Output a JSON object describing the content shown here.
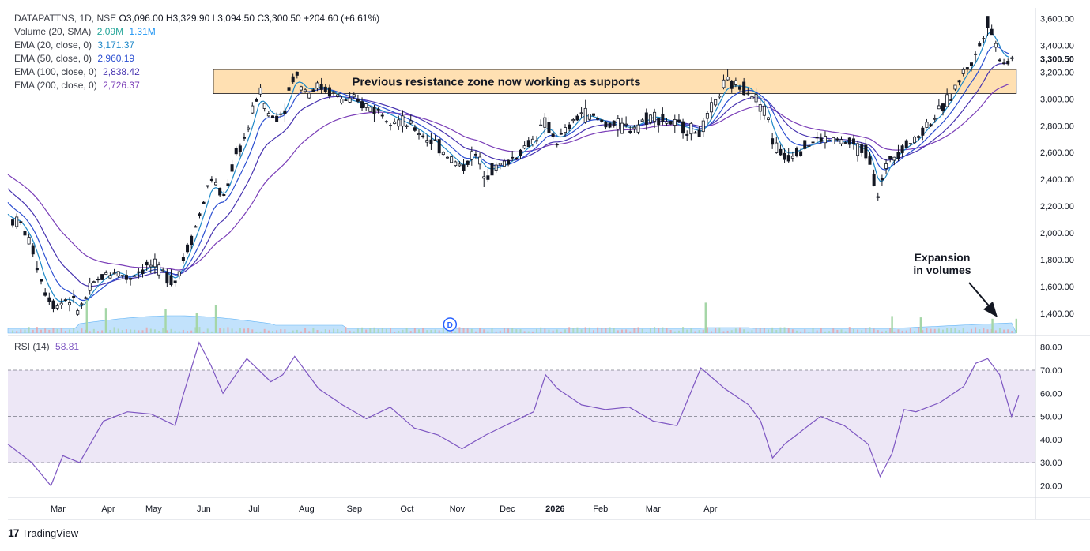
{
  "header": {
    "symbol": "DATAPATTNS, 1D, NSE",
    "open": "O3,096.00",
    "high": "H3,329.90",
    "low": "L3,094.50",
    "close": "C3,300.50",
    "change": "+204.60 (+6.61%)"
  },
  "indicators": [
    {
      "label": "Volume (20, SMA)",
      "value": "2.09M",
      "value2": "1.31M",
      "color": "#26a69a"
    },
    {
      "label": "EMA (20, close, 0)",
      "value": "3,171.37",
      "color": "#2962ff"
    },
    {
      "label": "EMA (50, close, 0)",
      "value": "2,960.19",
      "color": "#2f4bd6"
    },
    {
      "label": "EMA (100, close, 0)",
      "value": "2,838.42",
      "color": "#4c3bb5"
    },
    {
      "label": "EMA (200, close, 0)",
      "value": "2,726.37",
      "color": "#7b3fb8"
    }
  ],
  "annotations": {
    "zone_label": "Previous resistance zone now working as supports",
    "volume_note_line1": "Expansion",
    "volume_note_line2": "in volumes",
    "dividend_marker": "D"
  },
  "rsi": {
    "label": "RSI (14)",
    "value": "58.81"
  },
  "brand": {
    "name": "TradingView"
  },
  "colors": {
    "up": "#131722",
    "down": "#131722",
    "ema20": "#1e88c8",
    "ema50": "#2c4fd1",
    "ema100": "#4834b0",
    "ema200": "#7b3fb8",
    "zone_fill": "#ffe0b2",
    "rsi_line": "#7e57c2",
    "rsi_band": "#ede7f6",
    "volume_area": "#90caf9"
  },
  "chart_data": {
    "type": "line",
    "price_axis": {
      "ticks": [
        "3,600.00",
        "3,400.00",
        "3,300.50",
        "3,200.00",
        "3,000.00",
        "2,800.00",
        "2,600.00",
        "2,400.00",
        "2,200.00",
        "2,000.00",
        "1,800.00",
        "1,600.00",
        "1,400.00"
      ],
      "range": [
        1240,
        3680
      ]
    },
    "rsi_axis": {
      "ticks": [
        "80.00",
        "70.00",
        "60.00",
        "50.00",
        "40.00",
        "30.00",
        "20.00"
      ],
      "range": [
        15,
        84
      ],
      "bands": [
        30,
        50,
        70
      ]
    },
    "x_ticks": [
      "Mar",
      "Apr",
      "May",
      "Jun",
      "Jul",
      "Aug",
      "Sep",
      "Oct",
      "Nov",
      "Dec",
      "2026",
      "Feb",
      "Mar",
      "Apr"
    ],
    "zone": {
      "low": 3040,
      "high": 3220
    },
    "price_path": [
      [
        0,
        2100
      ],
      [
        0.5,
        2080
      ],
      [
        1,
        1900
      ],
      [
        1.5,
        1580
      ],
      [
        2,
        1450
      ],
      [
        2.5,
        1520
      ],
      [
        3,
        1420
      ],
      [
        3.5,
        1600
      ],
      [
        4,
        1680
      ],
      [
        4.5,
        1720
      ],
      [
        5,
        1660
      ],
      [
        5.5,
        1720
      ],
      [
        6,
        1760
      ],
      [
        6.5,
        1700
      ],
      [
        7,
        1640
      ],
      [
        7.5,
        1880
      ],
      [
        8,
        2120
      ],
      [
        8.5,
        2420
      ],
      [
        9,
        2250
      ],
      [
        9.5,
        2560
      ],
      [
        10,
        2750
      ],
      [
        10.5,
        3080
      ],
      [
        11,
        2850
      ],
      [
        11.5,
        2900
      ],
      [
        12,
        3200
      ],
      [
        12.5,
        3050
      ],
      [
        13,
        3100
      ],
      [
        14,
        3000
      ],
      [
        15,
        2950
      ],
      [
        16,
        2870
      ],
      [
        17,
        2780
      ],
      [
        18,
        2650
      ],
      [
        19,
        2480
      ],
      [
        19.5,
        2600
      ],
      [
        20,
        2450
      ],
      [
        21,
        2540
      ],
      [
        22,
        2700
      ],
      [
        22.5,
        2820
      ],
      [
        23,
        2680
      ],
      [
        24,
        2900
      ],
      [
        25,
        2820
      ],
      [
        26,
        2780
      ],
      [
        27,
        2880
      ],
      [
        28,
        2800
      ],
      [
        29,
        2750
      ],
      [
        30,
        3120
      ],
      [
        31,
        3080
      ],
      [
        31.8,
        2880
      ],
      [
        32,
        2680
      ],
      [
        32.5,
        2560
      ],
      [
        33,
        2620
      ],
      [
        34,
        2700
      ],
      [
        35,
        2680
      ],
      [
        36,
        2600
      ],
      [
        36.4,
        2280
      ],
      [
        36.9,
        2560
      ],
      [
        37.5,
        2650
      ],
      [
        38,
        2700
      ],
      [
        38.5,
        2820
      ],
      [
        39,
        2900
      ],
      [
        39.5,
        3040
      ],
      [
        40,
        3200
      ],
      [
        40.5,
        3320
      ],
      [
        41,
        3580
      ],
      [
        41.3,
        3420
      ],
      [
        41.6,
        3280
      ],
      [
        42,
        3300
      ]
    ],
    "rsi_path": [
      [
        0,
        38
      ],
      [
        1,
        30
      ],
      [
        1.8,
        20
      ],
      [
        2.3,
        33
      ],
      [
        3,
        30
      ],
      [
        4,
        48
      ],
      [
        5,
        52
      ],
      [
        6,
        51
      ],
      [
        7,
        46
      ],
      [
        7.3,
        58
      ],
      [
        8,
        82
      ],
      [
        8.5,
        72
      ],
      [
        9,
        60
      ],
      [
        10,
        75
      ],
      [
        11,
        65
      ],
      [
        11.5,
        68
      ],
      [
        12,
        76
      ],
      [
        13,
        62
      ],
      [
        14,
        55
      ],
      [
        15,
        49
      ],
      [
        16,
        54
      ],
      [
        17,
        45
      ],
      [
        18,
        42
      ],
      [
        19,
        36
      ],
      [
        20,
        42
      ],
      [
        21,
        47
      ],
      [
        22,
        52
      ],
      [
        22.5,
        68
      ],
      [
        23,
        62
      ],
      [
        24,
        55
      ],
      [
        25,
        53
      ],
      [
        26,
        54
      ],
      [
        27,
        48
      ],
      [
        28,
        46
      ],
      [
        29,
        71
      ],
      [
        30,
        62
      ],
      [
        31,
        55
      ],
      [
        31.5,
        48
      ],
      [
        32,
        32
      ],
      [
        32.5,
        38
      ],
      [
        33,
        42
      ],
      [
        34,
        50
      ],
      [
        35,
        46
      ],
      [
        36,
        38
      ],
      [
        36.5,
        24
      ],
      [
        37,
        34
      ],
      [
        37.5,
        53
      ],
      [
        38,
        52
      ],
      [
        39,
        56
      ],
      [
        40,
        63
      ],
      [
        40.5,
        73
      ],
      [
        41,
        75
      ],
      [
        41.5,
        68
      ],
      [
        42,
        50
      ],
      [
        42.3,
        59
      ]
    ],
    "volume_spikes": [
      {
        "x": 3.3,
        "v": 1
      },
      {
        "x": 4.1,
        "v": 0.7
      },
      {
        "x": 6.6,
        "v": 0.65
      },
      {
        "x": 7.9,
        "v": 0.5
      },
      {
        "x": 8.7,
        "v": 0.8
      },
      {
        "x": 29.2,
        "v": 0.9
      },
      {
        "x": 37.0,
        "v": 0.4
      },
      {
        "x": 38.2,
        "v": 0.35
      },
      {
        "x": 41.2,
        "v": 0.3
      },
      {
        "x": 42.2,
        "v": 0.3
      }
    ]
  }
}
